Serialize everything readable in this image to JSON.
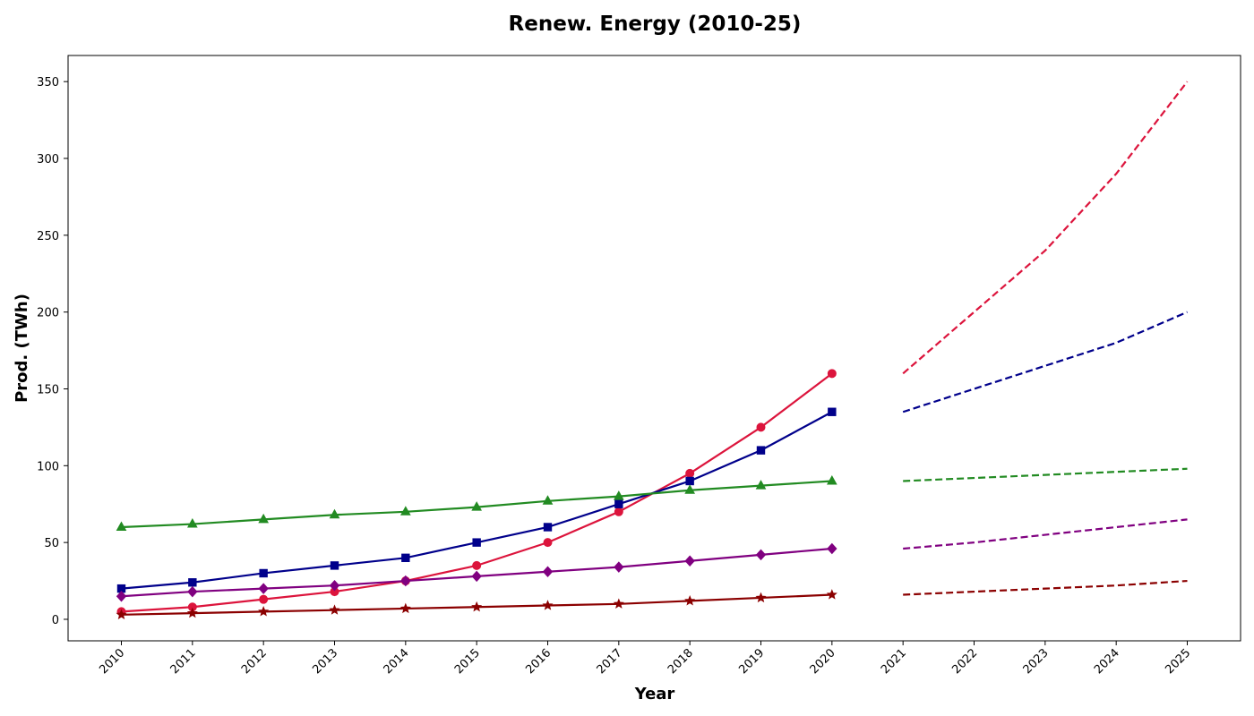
{
  "chart_data": {
    "type": "line",
    "title": "Renew. Energy (2010-25)",
    "xlabel": "Year",
    "ylabel": "Prod. (TWh)",
    "x": [
      2010,
      2011,
      2012,
      2013,
      2014,
      2015,
      2016,
      2017,
      2018,
      2019,
      2020
    ],
    "x_forecast": [
      2021,
      2022,
      2023,
      2024,
      2025
    ],
    "xticks": [
      "2010",
      "2011",
      "2012",
      "2013",
      "2014",
      "2015",
      "2016",
      "2017",
      "2018",
      "2019",
      "2020",
      "2021",
      "2022",
      "2023",
      "2024",
      "2025"
    ],
    "yticks": [
      "0",
      "50",
      "100",
      "150",
      "200",
      "250",
      "300",
      "350"
    ],
    "ylim": [
      -14,
      367
    ],
    "xlim": [
      2009.25,
      2025.75
    ],
    "grid": false,
    "legend": "none",
    "series": [
      {
        "color": "#dc143c",
        "marker": "circle",
        "values": [
          5,
          8,
          13,
          18,
          25,
          35,
          50,
          70,
          95,
          125,
          160
        ],
        "forecast": [
          160,
          200,
          240,
          290,
          350
        ]
      },
      {
        "color": "#00008b",
        "marker": "square",
        "values": [
          20,
          24,
          30,
          35,
          40,
          50,
          60,
          75,
          90,
          110,
          135
        ],
        "forecast": [
          135,
          150,
          165,
          180,
          200
        ]
      },
      {
        "color": "#228b22",
        "marker": "triangle",
        "values": [
          60,
          62,
          65,
          68,
          70,
          73,
          77,
          80,
          84,
          87,
          90
        ],
        "forecast": [
          90,
          92,
          94,
          96,
          98
        ]
      },
      {
        "color": "#800080",
        "marker": "diamond",
        "values": [
          15,
          18,
          20,
          22,
          25,
          28,
          31,
          34,
          38,
          42,
          46
        ],
        "forecast": [
          46,
          50,
          55,
          60,
          65
        ]
      },
      {
        "color": "#8b0000",
        "marker": "star",
        "values": [
          3,
          4,
          5,
          6,
          7,
          8,
          9,
          10,
          12,
          14,
          16
        ],
        "forecast": [
          16,
          18,
          20,
          22,
          25
        ]
      }
    ]
  }
}
